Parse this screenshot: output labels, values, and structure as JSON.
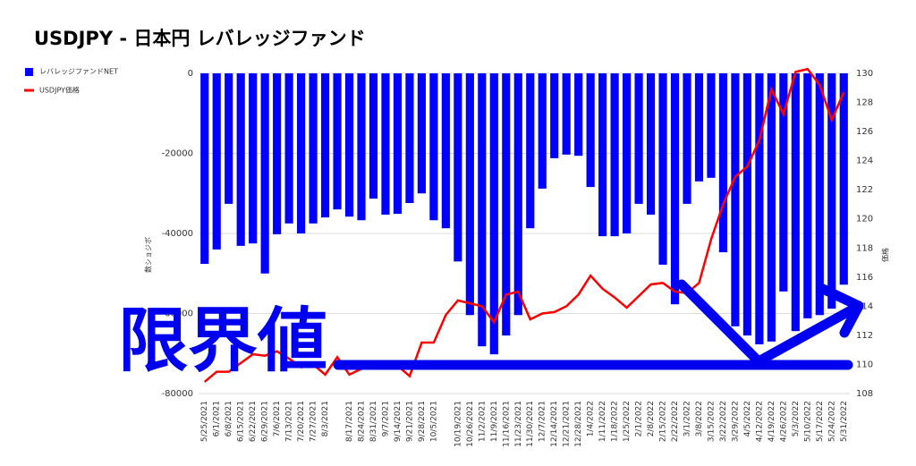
{
  "chart_data": {
    "type": "bar-line",
    "title": "USDJPY - 日本円 レバレッジファンド",
    "y_label": "数ショジボ",
    "y2_label": "価格",
    "annotation": "限界値",
    "categories": [
      "5/25/2021",
      "6/1/2021",
      "6/8/2021",
      "6/15/2021",
      "6/22/2021",
      "6/29/2021",
      "7/6/2021",
      "7/13/2021",
      "7/20/2021",
      "7/27/2021",
      "8/3/2021",
      null,
      "8/17/2021",
      "8/24/2021",
      "8/31/2021",
      "9/7/2021",
      "9/14/2021",
      "9/21/2021",
      "9/28/2021",
      "10/5/2021",
      null,
      "10/19/2021",
      "10/26/2021",
      "11/2/2021",
      "11/9/2021",
      "11/16/2021",
      "11/23/2021",
      "11/30/2021",
      "12/7/2021",
      "12/14/2021",
      "12/21/2021",
      "12/28/2021",
      "1/4/2022",
      "1/11/2022",
      "1/18/2022",
      "1/25/2022",
      "2/1/2022",
      "2/8/2022",
      "2/15/2022",
      "2/22/2022",
      "3/1/2022",
      "3/8/2022",
      "3/15/2022",
      "3/22/2022",
      "3/29/2022",
      "4/5/2022",
      "4/12/2022",
      "4/19/2022",
      "4/26/2022",
      "5/3/2022",
      "5/10/2022",
      "5/17/2022",
      "5/24/2022",
      "5/31/2022"
    ],
    "series": [
      {
        "name": "レバレッジファンドNET",
        "type": "bar",
        "color": "#0000ff",
        "values": [
          -47600,
          -44000,
          -32600,
          -43100,
          -42500,
          -50000,
          -40200,
          -37500,
          -40000,
          -37500,
          -36000,
          -34000,
          -35800,
          -36700,
          -31300,
          -35300,
          -35100,
          -32400,
          -30000,
          -36700,
          -38700,
          -47000,
          -60400,
          -68200,
          -70200,
          -65500,
          -60400,
          -38700,
          -28800,
          -21200,
          -20300,
          -20600,
          -28400,
          -40700,
          -40700,
          -40000,
          -32600,
          -35300,
          -47800,
          -57700,
          -32600,
          -27000,
          -26100,
          -44700,
          -63200,
          -65500,
          -67700,
          -67000,
          -54500,
          -64400,
          -61200,
          -60400,
          -58800,
          -52800
        ]
      },
      {
        "name": "USDJPY価格",
        "type": "line",
        "axis": "y2",
        "color": "#ff0000",
        "values": [
          108.8,
          109.5,
          109.5,
          110.1,
          110.7,
          110.6,
          110.9,
          110.4,
          109.8,
          110.0,
          109.3,
          110.5,
          109.3,
          109.7,
          110.0,
          110.2,
          109.9,
          109.2,
          111.5,
          111.5,
          113.4,
          114.4,
          114.2,
          114.0,
          112.9,
          114.8,
          115.0,
          113.1,
          113.5,
          113.6,
          114.0,
          114.8,
          116.1,
          115.2,
          114.6,
          113.9,
          114.7,
          115.5,
          115.6,
          115.0,
          114.9,
          115.6,
          118.6,
          121.0,
          122.9,
          123.6,
          125.4,
          128.9,
          127.2,
          130.1,
          130.3,
          129.2,
          126.8,
          128.7
        ]
      }
    ],
    "ylim": [
      -80000,
      0
    ],
    "yticks": [
      -80000,
      -60000,
      -40000,
      -20000,
      0
    ],
    "y2lim": [
      108,
      130
    ],
    "y2ticks": [
      108,
      110,
      112,
      114,
      116,
      118,
      120,
      122,
      124,
      126,
      128,
      130
    ],
    "grid": true,
    "legend": "top-left"
  }
}
